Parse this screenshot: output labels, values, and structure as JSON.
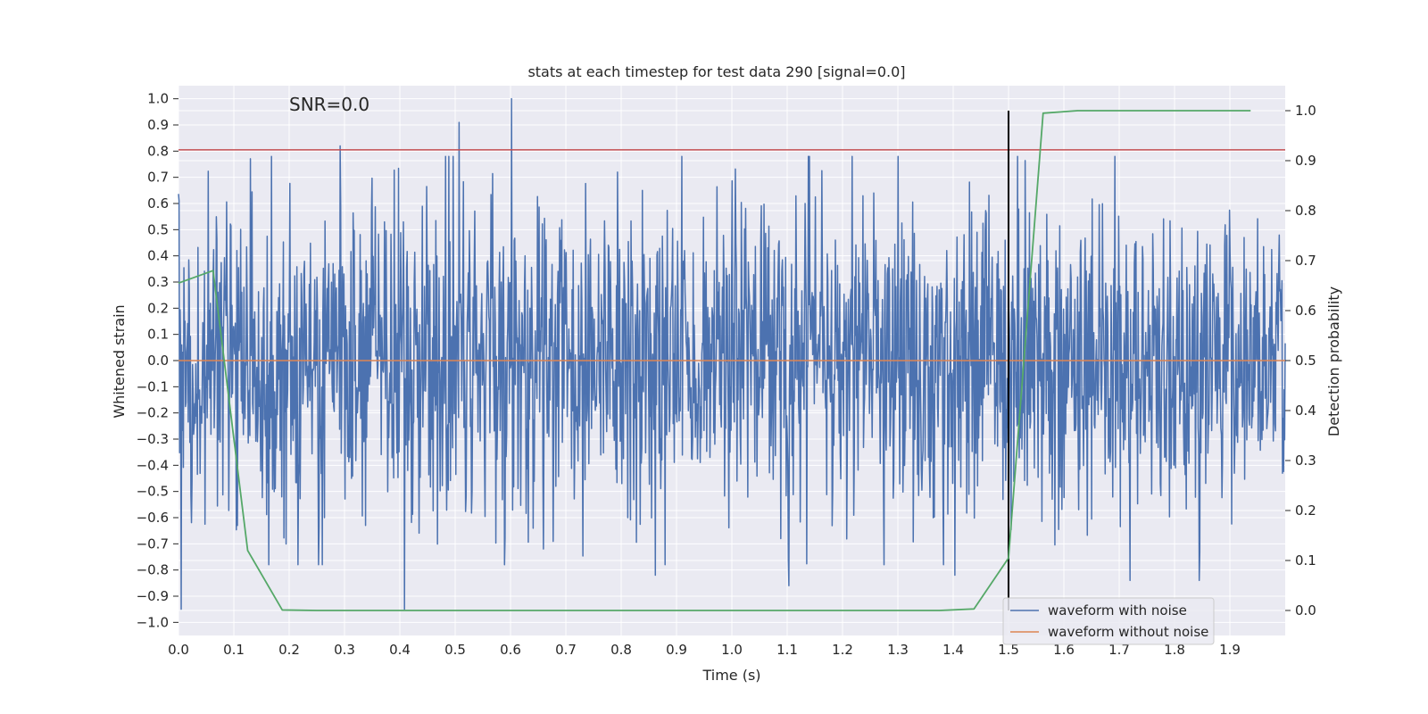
{
  "chart_data": {
    "type": "line",
    "title": "stats at each timestep for test data 290 [signal=0.0]",
    "xlabel": "Time (s)",
    "ylabel_left": "Whitened strain",
    "ylabel_right": "Detection probability",
    "xlim": [
      0.0,
      2.0
    ],
    "ylim_left": [
      -1.05,
      1.05
    ],
    "ylim_right": [
      -0.05,
      1.05
    ],
    "x_ticks": [
      "0.0",
      "0.1",
      "0.2",
      "0.3",
      "0.4",
      "0.5",
      "0.6",
      "0.7",
      "0.8",
      "0.9",
      "1.0",
      "1.1",
      "1.2",
      "1.3",
      "1.4",
      "1.5",
      "1.6",
      "1.7",
      "1.8",
      "1.9"
    ],
    "y_ticks_left": [
      "1.0",
      "0.9",
      "0.8",
      "0.7",
      "0.6",
      "0.5",
      "0.4",
      "0.3",
      "0.2",
      "0.1",
      "0.0",
      "-0.1",
      "-0.2",
      "-0.3",
      "-0.4",
      "-0.5",
      "-0.6",
      "-0.7",
      "-0.8",
      "-0.9",
      "-1.0"
    ],
    "y_ticks_right": [
      "1.0",
      "0.9",
      "0.8",
      "0.7",
      "0.6",
      "0.5",
      "0.4",
      "0.3",
      "0.2",
      "0.1",
      "0.0"
    ],
    "annotation": "SNR=0.0",
    "annotation_at": {
      "x": 0.2,
      "y": 1.0
    },
    "grid": true,
    "legend_position": "lower-right",
    "legend": [
      {
        "label": "waveform with noise",
        "color": "#4c72b0"
      },
      {
        "label": "waveform without noise",
        "color": "#dd8452"
      }
    ],
    "series": [
      {
        "name": "waveform with noise",
        "axis": "left",
        "color": "#4c72b0",
        "noise": {
          "x_start": 0.0,
          "x_end": 2.0,
          "samples": 2048,
          "amplitude_rms": 0.3
        },
        "notable_spikes": [
          {
            "x": 0.005,
            "y": -0.95
          },
          {
            "x": 0.292,
            "y": 0.82
          },
          {
            "x": 0.408,
            "y": -0.95
          },
          {
            "x": 0.507,
            "y": 0.91
          },
          {
            "x": 0.602,
            "y": 1.0
          },
          {
            "x": 0.862,
            "y": -0.82
          },
          {
            "x": 1.103,
            "y": -0.86
          },
          {
            "x": 1.403,
            "y": -0.82
          },
          {
            "x": 1.72,
            "y": -0.84
          },
          {
            "x": 1.845,
            "y": -0.84
          }
        ]
      },
      {
        "name": "waveform without noise",
        "axis": "left",
        "color": "#dd8452",
        "x": [
          0.0,
          2.0
        ],
        "y": [
          0.0,
          0.0
        ]
      },
      {
        "name": "detection probability",
        "axis": "right",
        "color": "#55a868",
        "x": [
          0.0,
          0.0625,
          0.125,
          0.1875,
          0.25,
          0.3125,
          0.375,
          0.4375,
          0.5,
          0.5625,
          0.625,
          0.6875,
          0.75,
          0.8125,
          0.875,
          0.9375,
          1.0,
          1.0625,
          1.125,
          1.1875,
          1.25,
          1.3125,
          1.375,
          1.4375,
          1.5,
          1.5625,
          1.625,
          1.6875,
          1.75,
          1.8125,
          1.875,
          1.9375
        ],
        "y": [
          0.655,
          0.68,
          0.12,
          0.001,
          0.0,
          0.0,
          0.0,
          0.0,
          0.0,
          0.0,
          0.0,
          0.0,
          0.0,
          0.0,
          0.0,
          0.0,
          0.0,
          0.0,
          0.0,
          0.0,
          0.0,
          0.0,
          0.0,
          0.003,
          0.105,
          0.995,
          1.0,
          1.0,
          1.0,
          1.0,
          1.0,
          1.0
        ]
      }
    ],
    "threshold_line": {
      "axis": "left",
      "y": 0.805,
      "color": "#c44e52"
    },
    "vertical_line": {
      "x": 1.5,
      "y_from": 0.0,
      "y_to": 1.0,
      "axis": "right",
      "color": "#000000"
    }
  }
}
